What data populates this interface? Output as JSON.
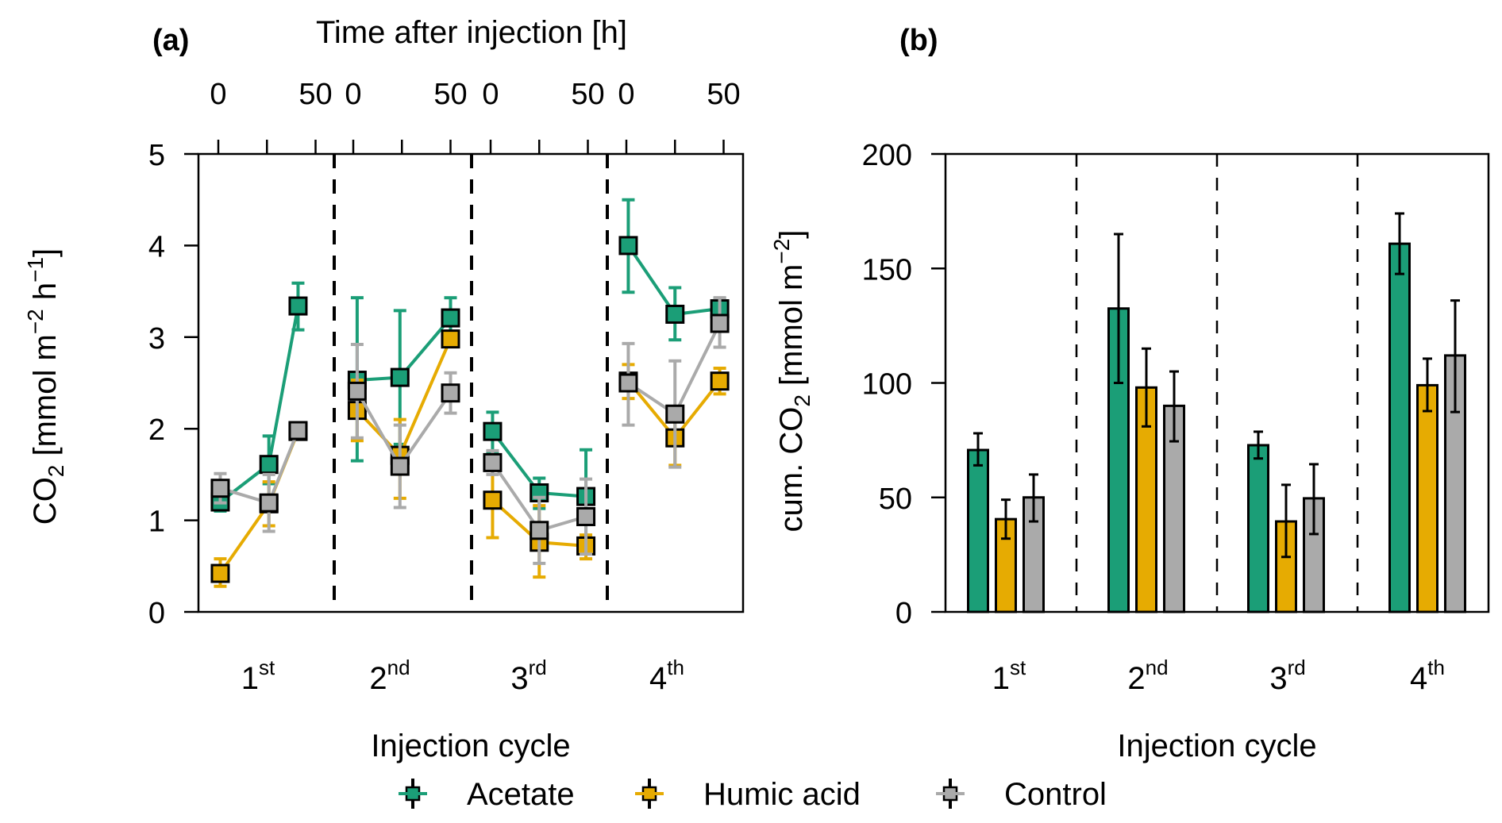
{
  "chart_data": [
    {
      "panel": "a",
      "type": "line",
      "panel_label": "(a)",
      "top_axis_title": "Time after injection [h]",
      "top_tick_labels": [
        "0",
        "50",
        "0",
        "50",
        "0",
        "50",
        "0",
        "50"
      ],
      "top_axis_range_per_cycle": [
        0,
        50
      ],
      "top_tick_hours": [
        0,
        25,
        50
      ],
      "ylabel": "CO2 [mmol m-2 h-1]",
      "ylabel_parts": {
        "main": "CO",
        "sub": "2",
        "unit_open": " [mmol m",
        "sup1": "−2",
        "h": " h",
        "sup2": "−1",
        "close": "]"
      },
      "ylim": [
        0,
        5
      ],
      "yticks": [
        0,
        1,
        2,
        3,
        4,
        5
      ],
      "xlabel": "Injection cycle",
      "categories": [
        {
          "num": "1",
          "sup": "st"
        },
        {
          "num": "2",
          "sup": "nd"
        },
        {
          "num": "3",
          "sup": "rd"
        },
        {
          "num": "4",
          "sup": "th"
        }
      ],
      "series": [
        {
          "name": "Acetate",
          "color": "#1b9e77",
          "cycles": [
            {
              "t": [
                1,
                26,
                41
              ],
              "y": [
                1.2,
                1.61,
                3.34
              ],
              "err_low": [
                1.1,
                1.4,
                3.08
              ],
              "err_high": [
                1.3,
                1.92,
                3.59
              ]
            },
            {
              "t": [
                2,
                24,
                50
              ],
              "y": [
                2.53,
                2.56,
                3.21
              ],
              "err_low": [
                1.65,
                1.83,
                3.02
              ],
              "err_high": [
                3.43,
                3.29,
                3.43
              ]
            },
            {
              "t": [
                1,
                25,
                49
              ],
              "y": [
                1.97,
                1.3,
                1.26
              ],
              "err_low": [
                1.75,
                1.13,
                0.76
              ],
              "err_high": [
                2.18,
                1.46,
                1.77
              ]
            },
            {
              "t": [
                1,
                25,
                48
              ],
              "y": [
                4.0,
                3.25,
                3.31
              ],
              "err_low": [
                3.49,
                2.97,
                3.2
              ],
              "err_high": [
                4.5,
                3.54,
                3.42
              ]
            }
          ]
        },
        {
          "name": "Humic acid",
          "color": "#e6ab02",
          "cycles": [
            {
              "t": [
                1,
                26,
                41
              ],
              "y": [
                0.42,
                1.18,
                1.97
              ],
              "err_low": [
                0.28,
                0.94,
                1.92
              ],
              "err_high": [
                0.58,
                1.42,
                2.02
              ]
            },
            {
              "t": [
                2,
                24,
                50
              ],
              "y": [
                2.2,
                1.71,
                2.98
              ],
              "err_low": [
                1.87,
                1.24,
                2.92
              ],
              "err_high": [
                2.53,
                2.1,
                3.04
              ]
            },
            {
              "t": [
                1,
                25,
                49
              ],
              "y": [
                1.22,
                0.76,
                0.72
              ],
              "err_low": [
                0.81,
                0.38,
                0.58
              ],
              "err_high": [
                1.63,
                1.16,
                0.84
              ]
            },
            {
              "t": [
                1,
                25,
                48
              ],
              "y": [
                2.52,
                1.9,
                2.52
              ],
              "err_low": [
                2.33,
                1.6,
                2.38
              ],
              "err_high": [
                2.7,
                2.2,
                2.66
              ]
            }
          ]
        },
        {
          "name": "Control",
          "color": "#aaaaaa",
          "cycles": [
            {
              "t": [
                1,
                26,
                41
              ],
              "y": [
                1.35,
                1.19,
                1.98
              ],
              "err_low": [
                1.19,
                0.88,
                1.94
              ],
              "err_high": [
                1.51,
                1.5,
                2.02
              ]
            },
            {
              "t": [
                2,
                24,
                50
              ],
              "y": [
                2.41,
                1.59,
                2.39
              ],
              "err_low": [
                1.9,
                1.14,
                2.17
              ],
              "err_high": [
                2.92,
                2.04,
                2.61
              ]
            },
            {
              "t": [
                1,
                25,
                49
              ],
              "y": [
                1.63,
                0.89,
                1.04
              ],
              "err_low": [
                1.5,
                0.53,
                0.63
              ],
              "err_high": [
                1.76,
                1.25,
                1.45
              ]
            },
            {
              "t": [
                1,
                25,
                48
              ],
              "y": [
                2.5,
                2.16,
                3.15
              ],
              "err_low": [
                2.04,
                1.58,
                2.89
              ],
              "err_high": [
                2.93,
                2.74,
                3.43
              ]
            }
          ]
        }
      ]
    },
    {
      "panel": "b",
      "type": "bar",
      "panel_label": "(b)",
      "ylabel": "cum. CO2 [mmol m-2]",
      "ylabel_parts": {
        "pre": "cum. CO",
        "sub": "2",
        "unit_open": " [mmol m",
        "sup1": "−2",
        "close": "]"
      },
      "ylim": [
        0,
        200
      ],
      "yticks": [
        0,
        50,
        100,
        150,
        200
      ],
      "xlabel": "Injection cycle",
      "categories": [
        {
          "num": "1",
          "sup": "st"
        },
        {
          "num": "2",
          "sup": "nd"
        },
        {
          "num": "3",
          "sup": "rd"
        },
        {
          "num": "4",
          "sup": "th"
        }
      ],
      "series": [
        {
          "name": "Acetate",
          "color": "#1b9e77",
          "values": [
            70.7,
            132.5,
            72.8,
            160.8
          ],
          "err_low": [
            64,
            100,
            67,
            147.6
          ],
          "err_high": [
            78,
            165,
            78.7,
            174
          ]
        },
        {
          "name": "Humic acid",
          "color": "#e6ab02",
          "values": [
            40.5,
            98,
            39.5,
            99
          ],
          "err_low": [
            32,
            81,
            24,
            87.7
          ],
          "err_high": [
            49,
            115,
            55.5,
            110.6
          ]
        },
        {
          "name": "Control",
          "color": "#aaaaaa",
          "values": [
            50,
            90,
            49.6,
            112
          ],
          "err_low": [
            39.5,
            74.5,
            34,
            87.3
          ],
          "err_high": [
            60,
            105,
            64.5,
            136
          ]
        }
      ]
    }
  ],
  "legend": {
    "placement": "bottom-center",
    "items": [
      {
        "label": "Acetate",
        "color": "#1b9e77"
      },
      {
        "label": "Humic acid",
        "color": "#e6ab02"
      },
      {
        "label": "Control",
        "color": "#aaaaaa"
      }
    ]
  }
}
